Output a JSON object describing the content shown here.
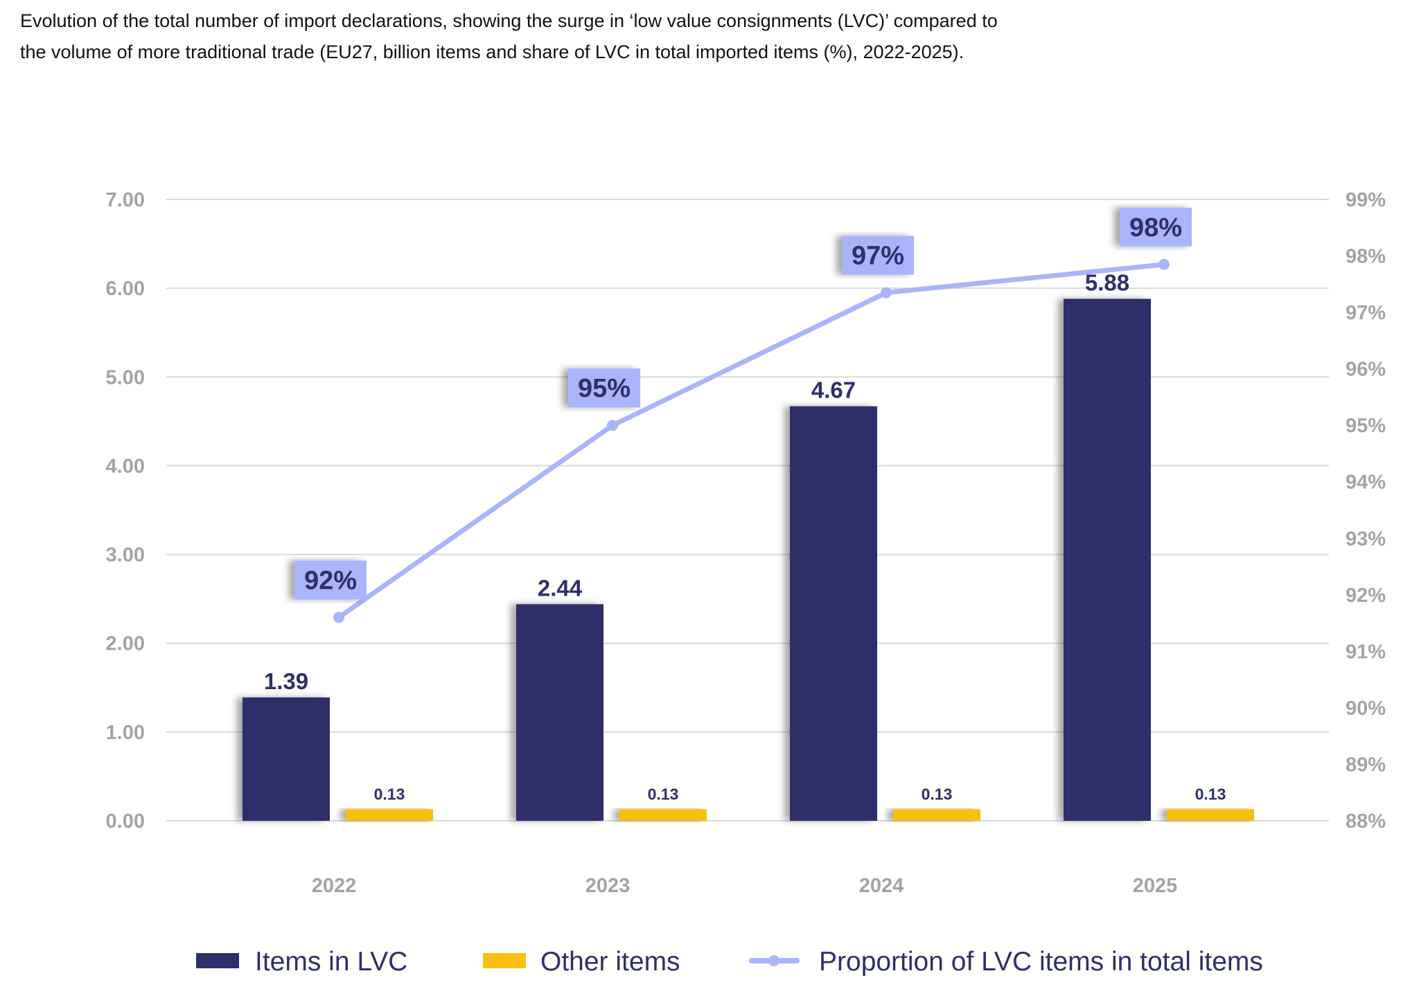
{
  "caption": "Evolution of the total number of import declarations, showing the surge in ‘low value consignments (LVC)’ compared to the volume of more traditional trade (EU27, billion items and share of LVC in total imported items (%), 2022-2025).",
  "chart_data": {
    "type": "bar",
    "title": "Evolution of the total number of import declarations, showing the surge in ‘low value consignments (LVC)’ compared to the volume of more traditional trade (EU27, billion items and share of LVC in total imported items (%), 2022-2025).",
    "categories": [
      "2022",
      "2023",
      "2024",
      "2025"
    ],
    "ylim": [
      0,
      7
    ],
    "y_ticks": [
      "0.00",
      "1.00",
      "2.00",
      "3.00",
      "4.00",
      "5.00",
      "6.00",
      "7.00"
    ],
    "y2lim": [
      88,
      99
    ],
    "y2_ticks": [
      "88%",
      "89%",
      "90%",
      "91%",
      "92%",
      "93%",
      "94%",
      "95%",
      "96%",
      "97%",
      "98%",
      "99%"
    ],
    "grid": true,
    "legend_position": "bottom",
    "series": [
      {
        "name": "Items in LVC",
        "type": "bar",
        "axis": "left",
        "color": "#2e2f6b",
        "values": [
          1.39,
          2.44,
          4.67,
          5.88
        ],
        "labels": [
          "1.39",
          "2.44",
          "4.67",
          "5.88"
        ]
      },
      {
        "name": "Other items",
        "type": "bar",
        "axis": "left",
        "color": "#f9bf10",
        "values": [
          0.13,
          0.13,
          0.13,
          0.13
        ],
        "labels": [
          "0.13",
          "0.13",
          "0.13",
          "0.13"
        ]
      },
      {
        "name": "Proportion of LVC items in total items",
        "type": "line",
        "axis": "right",
        "color": "#a9b4fb",
        "values": [
          91.6,
          95.0,
          97.35,
          97.85
        ],
        "labels": [
          "92%",
          "95%",
          "97%",
          "98%"
        ]
      }
    ]
  }
}
